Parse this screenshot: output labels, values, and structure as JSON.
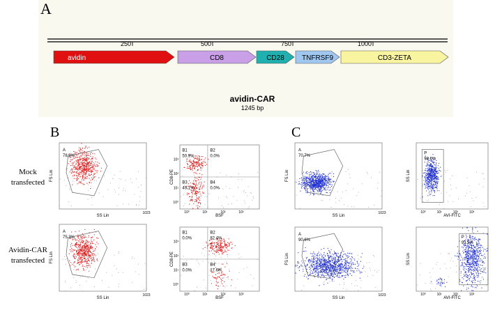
{
  "panel_a": {
    "label": "A",
    "ruler_ticks": [
      "250",
      "500",
      "750",
      "1000"
    ],
    "features": [
      "avidin",
      "CD8",
      "CD28",
      "TNFRSF9",
      "CD3-ZETA"
    ],
    "name": "avidin-CAR",
    "size": "1245 bp"
  },
  "panel_b": {
    "label": "B",
    "row_labels": [
      [
        "Mock",
        "transfected"
      ],
      [
        "Avidin-CAR",
        "transfected"
      ]
    ],
    "plots": [
      {
        "x_label": "SS Lin",
        "y_label": "FS Lin",
        "x_max": "1023",
        "gates": [
          [
            "A",
            "78.9%"
          ]
        ]
      },
      {
        "x_label": "BSF",
        "y_label": "CD8-PE",
        "log_ticks": [
          "10⁰",
          "10¹",
          "10²",
          "10³"
        ],
        "gates": [
          [
            "B1",
            "50.9%"
          ],
          [
            "B2",
            "0.0%"
          ],
          [
            "B3",
            "49.1%"
          ],
          [
            "B4",
            "0.0%"
          ]
        ]
      },
      {
        "x_label": "SS Lin",
        "y_label": "FS Lin",
        "x_max": "1023",
        "gates": [
          [
            "A",
            "75.3%"
          ]
        ]
      },
      {
        "x_label": "BSF",
        "y_label": "CD8-PE",
        "log_ticks": [
          "10⁰",
          "10¹",
          "10²",
          "10³"
        ],
        "gates": [
          [
            "B1",
            "0.0%"
          ],
          [
            "B2",
            "82.4%"
          ],
          [
            "B3",
            "0.0%"
          ],
          [
            "B4",
            "17.6%"
          ]
        ]
      }
    ]
  },
  "panel_c": {
    "label": "C",
    "plots": [
      {
        "x_label": "SS Lin",
        "y_label": "FS Lin",
        "x_max": "1023",
        "gates": [
          [
            "A",
            "70.7%"
          ]
        ]
      },
      {
        "x_label": "AVI-FITC",
        "y_label": "SS Lin",
        "log_ticks": [
          "10⁰",
          "10¹",
          "10²",
          "10³"
        ],
        "gates": [
          [
            "P",
            "98.6%"
          ]
        ]
      },
      {
        "x_label": "SS Lin",
        "y_label": "FS Lin",
        "x_max": "1023",
        "gates": [
          [
            "A",
            "90.6%"
          ]
        ]
      },
      {
        "x_label": "AVI-FITC",
        "y_label": "SS Lin",
        "log_ticks": [
          "10⁰",
          "10¹",
          "10²",
          "10³"
        ],
        "gates": [
          [
            "P",
            "93.5%"
          ]
        ]
      }
    ]
  }
}
